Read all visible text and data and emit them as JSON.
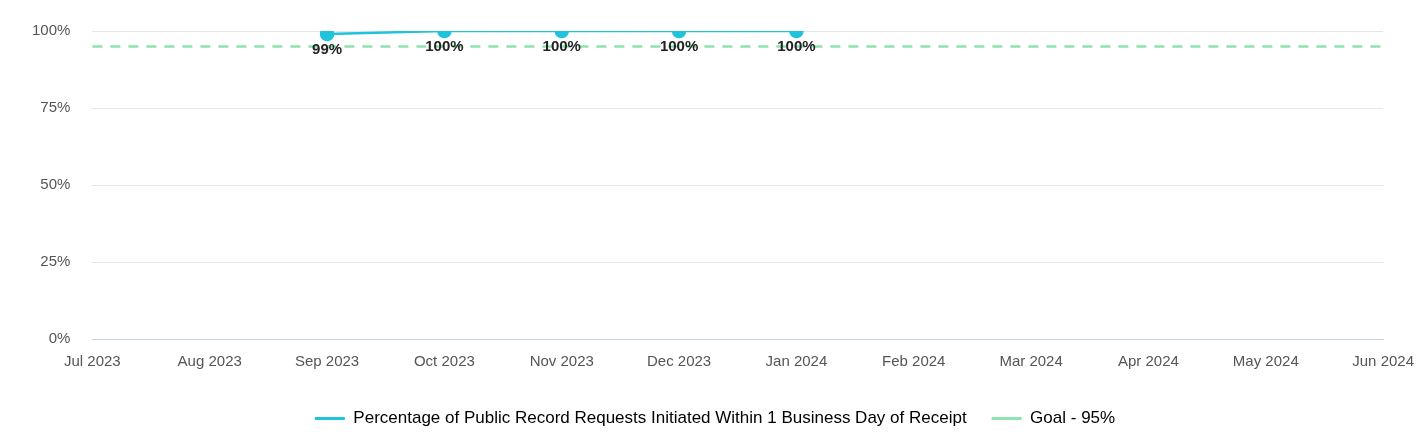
{
  "chart_data": {
    "type": "line",
    "categories": [
      "Jul 2023",
      "Aug 2023",
      "Sep 2023",
      "Oct 2023",
      "Nov 2023",
      "Dec 2023",
      "Jan 2024",
      "Feb 2024",
      "Mar 2024",
      "Apr 2024",
      "May 2024",
      "Jun 2024"
    ],
    "series": [
      {
        "name": "Percentage of Public Record Requests Initiated Within 1 Business Day of Receipt",
        "color": "#1fc3dd",
        "values": [
          null,
          null,
          99,
          100,
          100,
          100,
          100,
          null,
          null,
          null,
          null,
          null
        ],
        "value_labels": [
          null,
          null,
          "99%",
          "100%",
          "100%",
          "100%",
          "100%",
          null,
          null,
          null,
          null,
          null
        ],
        "marker": "circle",
        "line_style": "solid"
      },
      {
        "name": "Goal - 95%",
        "color": "#8fe3b0",
        "values": [
          95,
          95,
          95,
          95,
          95,
          95,
          95,
          95,
          95,
          95,
          95,
          95
        ],
        "marker": "none",
        "line_style": "dashed"
      }
    ],
    "ylim": [
      0,
      100
    ],
    "yticks": [
      {
        "value": 0,
        "label": "0%"
      },
      {
        "value": 25,
        "label": "25%"
      },
      {
        "value": 50,
        "label": "50%"
      },
      {
        "value": 75,
        "label": "75%"
      },
      {
        "value": 100,
        "label": "100%"
      }
    ],
    "grid": "y",
    "legend": "bottom"
  }
}
